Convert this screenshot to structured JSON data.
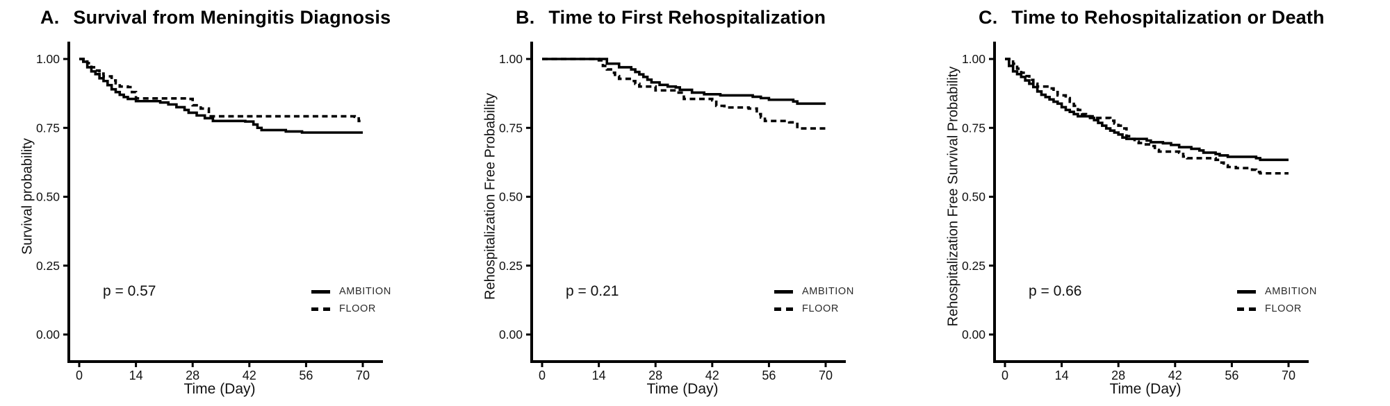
{
  "page": {
    "background": "#ffffff",
    "ink": "#000000"
  },
  "axes": {
    "x_label": "Time (Day)",
    "x_ticks": [
      {
        "v": 0,
        "label": "0"
      },
      {
        "v": 14,
        "label": "14"
      },
      {
        "v": 28,
        "label": "28"
      },
      {
        "v": 42,
        "label": "42"
      },
      {
        "v": 56,
        "label": "56"
      },
      {
        "v": 70,
        "label": "70"
      }
    ],
    "y_ticks": [
      {
        "v": 1.0,
        "label": "1.00"
      },
      {
        "v": 0.75,
        "label": "0.75"
      },
      {
        "v": 0.5,
        "label": "0.50"
      },
      {
        "v": 0.25,
        "label": "0.25"
      },
      {
        "v": 0.0,
        "label": "0.00"
      }
    ]
  },
  "chart_data": [
    {
      "type": "line",
      "subtype": "kaplan-meier-step",
      "panel_label": "A.",
      "title": "Survival from Meningitis Diagnosis",
      "ylabel": "Survival probability",
      "xlabel": "Time (Day)",
      "p_value": "p = 0.57",
      "xlim": [
        0,
        74
      ],
      "ylim": [
        0,
        1.0
      ],
      "grid": false,
      "legend_position": "inside-lower-right",
      "series": [
        {
          "name": "AMBITION",
          "line_style": "solid",
          "points": [
            [
              0,
              1.0
            ],
            [
              1,
              0.99
            ],
            [
              2,
              0.97
            ],
            [
              3,
              0.955
            ],
            [
              4,
              0.945
            ],
            [
              5,
              0.93
            ],
            [
              6,
              0.92
            ],
            [
              7,
              0.905
            ],
            [
              8,
              0.89
            ],
            [
              9,
              0.88
            ],
            [
              10,
              0.87
            ],
            [
              11,
              0.862
            ],
            [
              12,
              0.855
            ],
            [
              14,
              0.847
            ],
            [
              20,
              0.842
            ],
            [
              22,
              0.835
            ],
            [
              24,
              0.825
            ],
            [
              26,
              0.815
            ],
            [
              27,
              0.805
            ],
            [
              29,
              0.795
            ],
            [
              31,
              0.785
            ],
            [
              33,
              0.775
            ],
            [
              41,
              0.773
            ],
            [
              43,
              0.762
            ],
            [
              44,
              0.75
            ],
            [
              45,
              0.742
            ],
            [
              51,
              0.737
            ],
            [
              55,
              0.733
            ],
            [
              70,
              0.733
            ]
          ]
        },
        {
          "name": "FLOOR",
          "line_style": "dashed",
          "points": [
            [
              0,
              1.0
            ],
            [
              2,
              0.985
            ],
            [
              3,
              0.97
            ],
            [
              4,
              0.958
            ],
            [
              5,
              0.947
            ],
            [
              6,
              0.937
            ],
            [
              8,
              0.922
            ],
            [
              9,
              0.912
            ],
            [
              10,
              0.9
            ],
            [
              12,
              0.898
            ],
            [
              13,
              0.88
            ],
            [
              14,
              0.857
            ],
            [
              27,
              0.855
            ],
            [
              28,
              0.832
            ],
            [
              30,
              0.82
            ],
            [
              32,
              0.792
            ],
            [
              68,
              0.79
            ],
            [
              69,
              0.775
            ],
            [
              70,
              0.775
            ]
          ]
        }
      ]
    },
    {
      "type": "line",
      "subtype": "kaplan-meier-step",
      "panel_label": "B.",
      "title": "Time to First Rehospitalization",
      "ylabel": "Rehospitalization Free Probability",
      "xlabel": "Time (Day)",
      "p_value": "p = 0.21",
      "xlim": [
        0,
        74
      ],
      "ylim": [
        0,
        1.0
      ],
      "grid": false,
      "legend_position": "inside-lower-right",
      "series": [
        {
          "name": "AMBITION",
          "line_style": "solid",
          "points": [
            [
              0,
              1.0
            ],
            [
              16,
              0.983
            ],
            [
              19,
              0.97
            ],
            [
              22,
              0.962
            ],
            [
              23,
              0.953
            ],
            [
              24,
              0.944
            ],
            [
              25,
              0.935
            ],
            [
              26,
              0.925
            ],
            [
              27,
              0.915
            ],
            [
              29,
              0.906
            ],
            [
              31,
              0.9
            ],
            [
              33,
              0.897
            ],
            [
              34,
              0.888
            ],
            [
              37,
              0.878
            ],
            [
              40,
              0.872
            ],
            [
              44,
              0.868
            ],
            [
              52,
              0.863
            ],
            [
              54,
              0.858
            ],
            [
              56,
              0.852
            ],
            [
              62,
              0.846
            ],
            [
              63,
              0.838
            ],
            [
              70,
              0.838
            ]
          ]
        },
        {
          "name": "FLOOR",
          "line_style": "dashed",
          "points": [
            [
              0,
              1.0
            ],
            [
              14,
              0.995
            ],
            [
              15,
              0.975
            ],
            [
              16,
              0.962
            ],
            [
              17,
              0.95
            ],
            [
              18,
              0.938
            ],
            [
              19,
              0.928
            ],
            [
              22,
              0.92
            ],
            [
              23,
              0.91
            ],
            [
              24,
              0.9
            ],
            [
              28,
              0.886
            ],
            [
              33,
              0.878
            ],
            [
              35,
              0.855
            ],
            [
              42,
              0.85
            ],
            [
              43,
              0.83
            ],
            [
              45,
              0.824
            ],
            [
              51,
              0.82
            ],
            [
              53,
              0.8
            ],
            [
              54,
              0.788
            ],
            [
              55,
              0.775
            ],
            [
              61,
              0.77
            ],
            [
              63,
              0.748
            ],
            [
              70,
              0.745
            ]
          ]
        }
      ]
    },
    {
      "type": "line",
      "subtype": "kaplan-meier-step",
      "panel_label": "C.",
      "title": "Time to Rehospitalization or Death",
      "ylabel": "Rehospitalization Free Survival Probability",
      "xlabel": "Time (Day)",
      "p_value": "p = 0.66",
      "xlim": [
        0,
        74
      ],
      "ylim": [
        0,
        1.0
      ],
      "grid": false,
      "legend_position": "inside-lower-right",
      "series": [
        {
          "name": "AMBITION",
          "line_style": "solid",
          "points": [
            [
              0,
              1.0
            ],
            [
              1,
              0.975
            ],
            [
              2,
              0.955
            ],
            [
              3,
              0.945
            ],
            [
              4,
              0.935
            ],
            [
              5,
              0.922
            ],
            [
              6,
              0.91
            ],
            [
              7,
              0.898
            ],
            [
              8,
              0.882
            ],
            [
              9,
              0.87
            ],
            [
              10,
              0.862
            ],
            [
              11,
              0.853
            ],
            [
              12,
              0.845
            ],
            [
              13,
              0.838
            ],
            [
              14,
              0.825
            ],
            [
              15,
              0.815
            ],
            [
              16,
              0.808
            ],
            [
              17,
              0.8
            ],
            [
              18,
              0.792
            ],
            [
              21,
              0.786
            ],
            [
              22,
              0.778
            ],
            [
              23,
              0.768
            ],
            [
              24,
              0.758
            ],
            [
              25,
              0.748
            ],
            [
              26,
              0.74
            ],
            [
              27,
              0.733
            ],
            [
              28,
              0.726
            ],
            [
              29,
              0.715
            ],
            [
              30,
              0.71
            ],
            [
              35,
              0.704
            ],
            [
              36,
              0.698
            ],
            [
              39,
              0.694
            ],
            [
              41,
              0.688
            ],
            [
              43,
              0.68
            ],
            [
              46,
              0.674
            ],
            [
              48,
              0.668
            ],
            [
              49,
              0.66
            ],
            [
              52,
              0.655
            ],
            [
              53,
              0.65
            ],
            [
              55,
              0.645
            ],
            [
              62,
              0.64
            ],
            [
              63,
              0.634
            ],
            [
              70,
              0.634
            ]
          ]
        },
        {
          "name": "FLOOR",
          "line_style": "dashed",
          "points": [
            [
              0,
              1.0
            ],
            [
              2,
              0.983
            ],
            [
              3,
              0.965
            ],
            [
              4,
              0.95
            ],
            [
              5,
              0.938
            ],
            [
              6,
              0.924
            ],
            [
              7,
              0.91
            ],
            [
              8,
              0.9
            ],
            [
              11,
              0.893
            ],
            [
              12,
              0.88
            ],
            [
              13,
              0.868
            ],
            [
              15,
              0.858
            ],
            [
              16,
              0.845
            ],
            [
              17,
              0.83
            ],
            [
              18,
              0.815
            ],
            [
              19,
              0.8
            ],
            [
              20,
              0.792
            ],
            [
              22,
              0.786
            ],
            [
              26,
              0.776
            ],
            [
              27,
              0.766
            ],
            [
              28,
              0.758
            ],
            [
              29,
              0.748
            ],
            [
              30,
              0.72
            ],
            [
              31,
              0.71
            ],
            [
              32,
              0.7
            ],
            [
              33,
              0.695
            ],
            [
              34,
              0.69
            ],
            [
              36,
              0.684
            ],
            [
              37,
              0.67
            ],
            [
              38,
              0.664
            ],
            [
              43,
              0.66
            ],
            [
              44,
              0.646
            ],
            [
              45,
              0.64
            ],
            [
              52,
              0.634
            ],
            [
              53,
              0.624
            ],
            [
              54,
              0.614
            ],
            [
              55,
              0.608
            ],
            [
              57,
              0.604
            ],
            [
              61,
              0.598
            ],
            [
              62,
              0.59
            ],
            [
              63,
              0.585
            ],
            [
              70,
              0.585
            ]
          ]
        }
      ]
    }
  ]
}
